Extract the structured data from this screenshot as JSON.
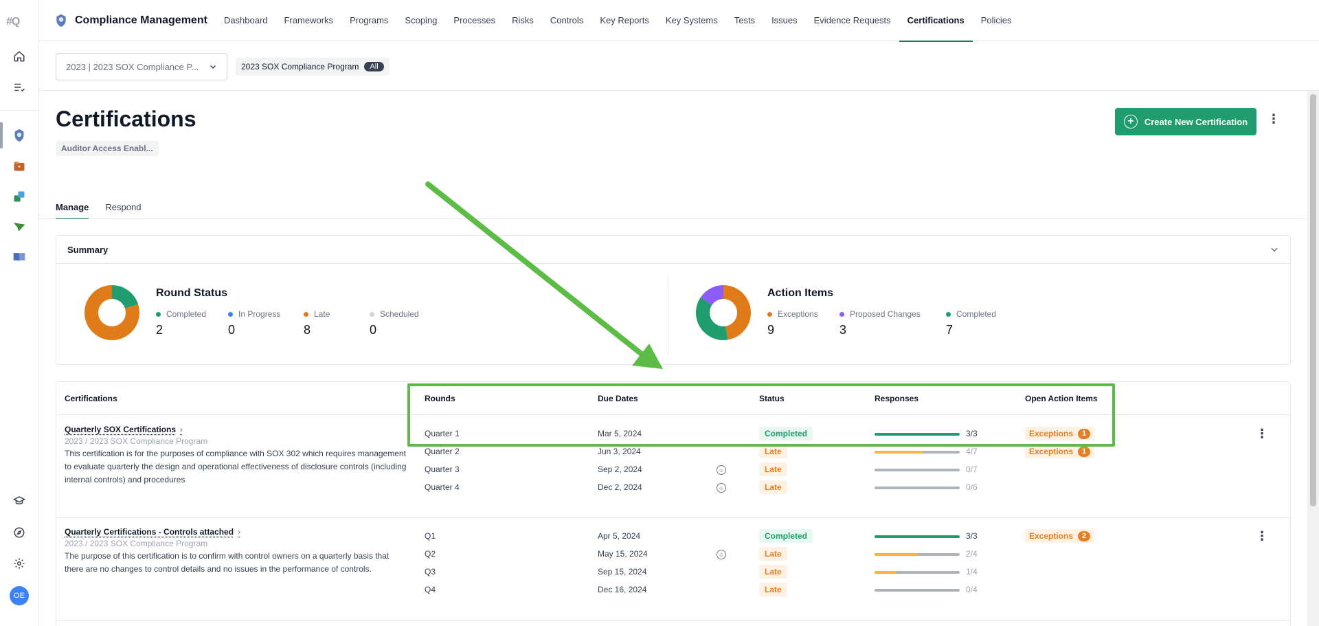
{
  "rail": {
    "logo": "#",
    "logo_suffix": "Q",
    "avatar": "OE",
    "icons": [
      "home-icon",
      "tasks-icon",
      "compliance-icon",
      "folder-icon",
      "sync-icon",
      "send-icon",
      "book-icon",
      "learn-icon",
      "compass-icon",
      "gear-icon"
    ]
  },
  "topnav": {
    "title": "Compliance Management",
    "items": [
      "Dashboard",
      "Frameworks",
      "Programs",
      "Scoping",
      "Processes",
      "Risks",
      "Controls",
      "Key Reports",
      "Key Systems",
      "Tests",
      "Issues",
      "Evidence Requests",
      "Certifications",
      "Policies"
    ],
    "active": "Certifications"
  },
  "filters": {
    "program_select": "2023 | 2023 SOX Compliance P...",
    "chip_label": "2023 SOX Compliance Program",
    "chip_pill": "All"
  },
  "page": {
    "title": "Certifications",
    "auditor_chip": "Auditor Access Enabl...",
    "create_button": "Create New Certification",
    "tabs": [
      "Manage",
      "Respond"
    ]
  },
  "summary": {
    "title": "Summary",
    "round_status": {
      "title": "Round Status",
      "items": [
        {
          "label": "Completed",
          "value": "2",
          "color": "#1f9d6f"
        },
        {
          "label": "In Progress",
          "value": "0",
          "color": "#3b82f6"
        },
        {
          "label": "Late",
          "value": "8",
          "color": "#e07b1a"
        },
        {
          "label": "Scheduled",
          "value": "0",
          "color": "#d1d5db"
        }
      ]
    },
    "action_items": {
      "title": "Action Items",
      "items": [
        {
          "label": "Exceptions",
          "value": "9",
          "color": "#e07b1a"
        },
        {
          "label": "Proposed Changes",
          "value": "3",
          "color": "#8b5cf6"
        },
        {
          "label": "Completed",
          "value": "7",
          "color": "#1f9d6f"
        }
      ]
    }
  },
  "table": {
    "headers": [
      "Certifications",
      "Rounds",
      "Due Dates",
      "Status",
      "Responses",
      "Open Action Items"
    ],
    "certifications": [
      {
        "name": "Quarterly SOX Certifications",
        "program": "2023 / 2023 SOX Compliance Program",
        "description": "This certification is for the purposes of compliance with SOX 302 which requires management to evaluate quarterly the design and operational effectiveness of disclosure controls (including internal controls) and procedures",
        "rounds": [
          {
            "round": "Quarter 1",
            "due": "Mar 5, 2024",
            "status": "Completed",
            "responses": "3/3",
            "fraction": 1.0,
            "bar_color": "#1f9d6f",
            "face": false,
            "exceptions": "1",
            "exc_label": "Exceptions"
          },
          {
            "round": "Quarter 2",
            "due": "Jun 3, 2024",
            "status": "Late",
            "responses": "4/7",
            "fraction": 0.571,
            "bar_color": "#f4b73b",
            "face": false,
            "exceptions": "1",
            "exc_label": "Exceptions"
          },
          {
            "round": "Quarter 3",
            "due": "Sep 2, 2024",
            "status": "Late",
            "responses": "0/7",
            "fraction": 0,
            "bar_color": "#f4b73b",
            "face": true
          },
          {
            "round": "Quarter 4",
            "due": "Dec 2, 2024",
            "status": "Late",
            "responses": "0/6",
            "fraction": 0,
            "bar_color": "#f4b73b",
            "face": true
          }
        ]
      },
      {
        "name": "Quarterly Certifications - Controls attached",
        "program": "2023 / 2023 SOX Compliance Program",
        "description": "The purpose of this certification is to confirm with control owners on a quarterly basis that there are no changes to control details and no issues in the performance of controls.",
        "rounds": [
          {
            "round": "Q1",
            "due": "Apr 5, 2024",
            "status": "Completed",
            "responses": "3/3",
            "fraction": 1.0,
            "bar_color": "#1f9d6f",
            "face": false,
            "exceptions": "2",
            "exc_label": "Exceptions"
          },
          {
            "round": "Q2",
            "due": "May 15, 2024",
            "status": "Late",
            "responses": "2/4",
            "fraction": 0.5,
            "bar_color": "#f4b73b",
            "face": true
          },
          {
            "round": "Q3",
            "due": "Sep 15, 2024",
            "status": "Late",
            "responses": "1/4",
            "fraction": 0.25,
            "bar_color": "#f4b73b",
            "face": false
          },
          {
            "round": "Q4",
            "due": "Dec 16, 2024",
            "status": "Late",
            "responses": "0/4",
            "fraction": 0,
            "bar_color": "#f4b73b",
            "face": false
          }
        ]
      }
    ]
  }
}
